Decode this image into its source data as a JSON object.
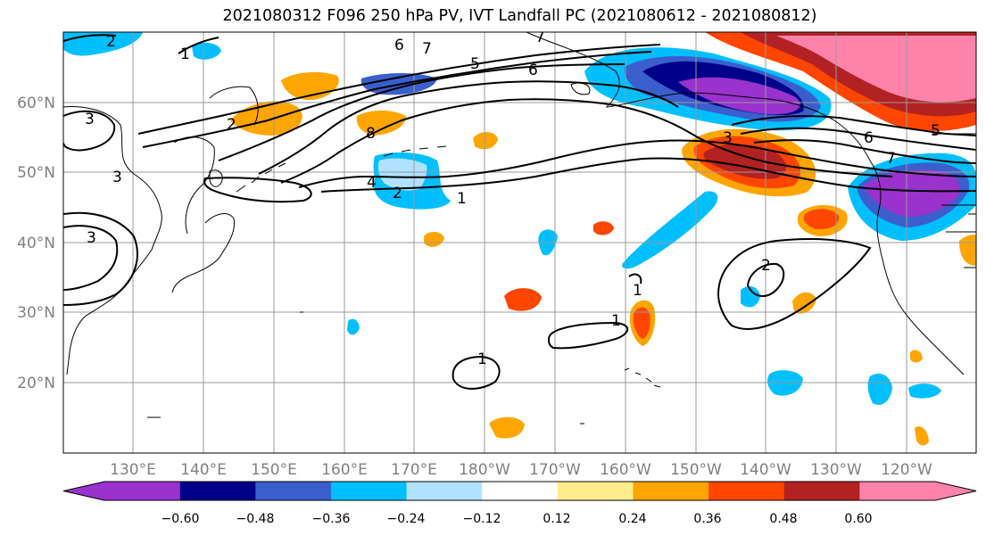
{
  "title": "2021080312 F096 250 hPa PV, IVT Landfall PC (2021080612 - 2021080812)",
  "lat_labels": [
    "60°N",
    "50°N",
    "40°N",
    "30°N",
    "20°N"
  ],
  "lon_labels": [
    "130°E",
    "140°E",
    "150°E",
    "160°E",
    "170°E",
    "180°W",
    "170°W",
    "160°W",
    "150°W",
    "140°W",
    "130°W",
    "120°W"
  ],
  "colorbar": {
    "tick_labels": [
      "−0.60",
      "−0.48",
      "−0.36",
      "−0.24",
      "−0.12",
      "0.12",
      "0.24",
      "0.36",
      "0.48",
      "0.60"
    ],
    "colors": [
      "#9a32cd",
      "#00008b",
      "#3a5fcd",
      "#00bfff",
      "#b0e2ff",
      "#ffffff",
      "#ffec8b",
      "#ffa500",
      "#ff4500",
      "#b22222",
      "#ff82ab"
    ]
  },
  "contour_labels": [
    "2",
    "1",
    "3",
    "3",
    "3",
    "2",
    "7",
    "6",
    "5",
    "6",
    "7",
    "8",
    "4",
    "2",
    "1",
    "3",
    "5",
    "6",
    "7",
    "2",
    "1",
    "1",
    "1"
  ]
}
